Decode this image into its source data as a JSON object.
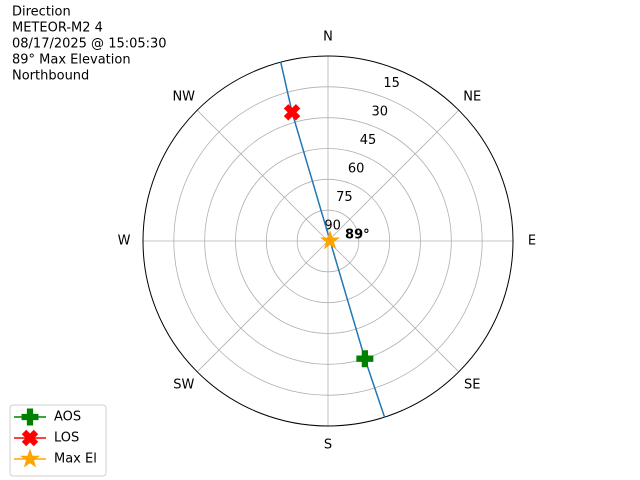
{
  "chart_data": {
    "type": "polar",
    "title_lines": [
      "Direction",
      "METEOR-M2 4",
      "08/17/2025 @ 15:05:30",
      "89° Max Elevation",
      "Northbound"
    ],
    "rlim": [
      90,
      0
    ],
    "rticks": [
      15,
      30,
      45,
      60,
      75,
      90
    ],
    "thetaticks": [
      {
        "value": 0,
        "label": "N"
      },
      {
        "value": 45,
        "label": "NE"
      },
      {
        "value": 90,
        "label": "E"
      },
      {
        "value": 135,
        "label": "SE"
      },
      {
        "value": 180,
        "label": "S"
      },
      {
        "value": 225,
        "label": "SW"
      },
      {
        "value": 270,
        "label": "W"
      },
      {
        "value": 315,
        "label": "NW"
      }
    ],
    "grid": true,
    "legend": "lower left",
    "series": [
      {
        "color": "#1f77b4",
        "marker": "none",
        "azimuth": [
          345.2,
          344.4,
          84,
          162.6,
          162.2
        ],
        "elevation": [
          0,
          25,
          89,
          30,
          0
        ]
      },
      {
        "name": "AOS",
        "color": "green",
        "marker": "plus",
        "azimuth": [
          162.6
        ],
        "elevation": [
          30
        ]
      },
      {
        "name": "LOS",
        "color": "red",
        "marker": "x",
        "azimuth": [
          344.4
        ],
        "elevation": [
          25
        ]
      },
      {
        "name": "Max El",
        "color": "orange",
        "marker": "star",
        "azimuth": [
          84
        ],
        "elevation": [
          89
        ],
        "annotation": "89°"
      }
    ]
  }
}
